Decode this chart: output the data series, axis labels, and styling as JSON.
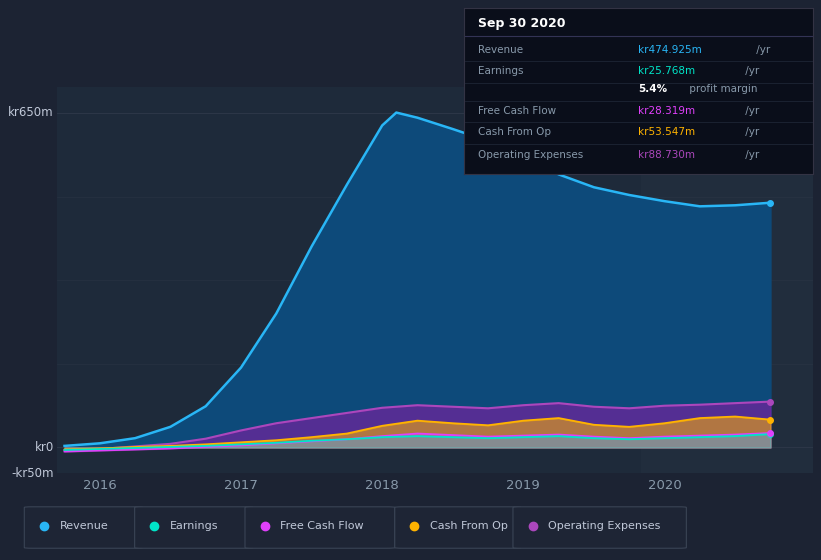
{
  "bg_color": "#1c2333",
  "plot_bg_color": "#1e2a3a",
  "grid_color": "#2d3748",
  "ylim": [
    -50,
    700
  ],
  "yticks_labeled": [
    -50,
    0,
    650
  ],
  "ytick_labels": [
    "-kr50m",
    "kr0",
    "kr650m"
  ],
  "xlim": [
    2015.7,
    2021.05
  ],
  "xticks": [
    2016,
    2017,
    2018,
    2019,
    2020
  ],
  "series": {
    "revenue": {
      "color": "#29b6f6",
      "fill_color": "#1565a0",
      "x": [
        2015.75,
        2016.0,
        2016.25,
        2016.5,
        2016.75,
        2017.0,
        2017.25,
        2017.5,
        2017.75,
        2018.0,
        2018.1,
        2018.25,
        2018.5,
        2018.75,
        2019.0,
        2019.25,
        2019.5,
        2019.75,
        2020.0,
        2020.25,
        2020.5,
        2020.75
      ],
      "y": [
        3,
        8,
        18,
        40,
        80,
        155,
        260,
        390,
        510,
        625,
        650,
        640,
        618,
        595,
        565,
        530,
        505,
        490,
        478,
        468,
        470,
        475
      ]
    },
    "earnings": {
      "color": "#00e5c8",
      "fill_color": "#00e5c8",
      "x": [
        2015.75,
        2016.0,
        2016.25,
        2016.5,
        2016.75,
        2017.0,
        2017.25,
        2017.5,
        2017.75,
        2018.0,
        2018.25,
        2018.5,
        2018.75,
        2019.0,
        2019.25,
        2019.5,
        2019.75,
        2020.0,
        2020.25,
        2020.5,
        2020.75
      ],
      "y": [
        -5,
        -3,
        -1,
        1,
        3,
        6,
        9,
        13,
        16,
        20,
        22,
        20,
        18,
        20,
        22,
        18,
        16,
        18,
        20,
        22,
        26
      ]
    },
    "free_cash_flow": {
      "color": "#e040fb",
      "fill_color": "#e040fb",
      "x": [
        2015.75,
        2016.0,
        2016.25,
        2016.5,
        2016.75,
        2017.0,
        2017.25,
        2017.5,
        2017.75,
        2018.0,
        2018.25,
        2018.5,
        2018.75,
        2019.0,
        2019.25,
        2019.5,
        2019.75,
        2020.0,
        2020.25,
        2020.5,
        2020.75
      ],
      "y": [
        -8,
        -6,
        -4,
        -2,
        1,
        4,
        8,
        12,
        16,
        22,
        27,
        24,
        21,
        23,
        25,
        21,
        18,
        21,
        23,
        25,
        28
      ]
    },
    "cash_from_op": {
      "color": "#ffb300",
      "fill_color": "#ffb300",
      "x": [
        2015.75,
        2016.0,
        2016.25,
        2016.5,
        2016.75,
        2017.0,
        2017.25,
        2017.5,
        2017.75,
        2018.0,
        2018.25,
        2018.5,
        2018.75,
        2019.0,
        2019.25,
        2019.5,
        2019.75,
        2020.0,
        2020.25,
        2020.5,
        2020.75
      ],
      "y": [
        -4,
        -2,
        1,
        3,
        6,
        10,
        14,
        20,
        27,
        42,
        52,
        47,
        43,
        52,
        57,
        44,
        40,
        47,
        57,
        60,
        54
      ]
    },
    "operating_expenses": {
      "color": "#ab47bc",
      "fill_color": "#7b1fa2",
      "x": [
        2015.75,
        2016.0,
        2016.25,
        2016.5,
        2016.75,
        2017.0,
        2017.25,
        2017.5,
        2017.75,
        2018.0,
        2018.25,
        2018.5,
        2018.75,
        2019.0,
        2019.25,
        2019.5,
        2019.75,
        2020.0,
        2020.25,
        2020.5,
        2020.75
      ],
      "y": [
        -6,
        -3,
        2,
        7,
        17,
        33,
        47,
        57,
        67,
        77,
        82,
        79,
        76,
        82,
        86,
        79,
        76,
        81,
        83,
        86,
        89
      ]
    }
  },
  "legend": [
    {
      "label": "Revenue",
      "color": "#29b6f6"
    },
    {
      "label": "Earnings",
      "color": "#00e5c8"
    },
    {
      "label": "Free Cash Flow",
      "color": "#e040fb"
    },
    {
      "label": "Cash From Op",
      "color": "#ffb300"
    },
    {
      "label": "Operating Expenses",
      "color": "#ab47bc"
    }
  ],
  "infobox": {
    "title": "Sep 30 2020",
    "rows": [
      {
        "label": "Revenue",
        "value": "kr474.925m",
        "suffix": " /yr",
        "value_color": "#29b6f6"
      },
      {
        "label": "Earnings",
        "value": "kr25.768m",
        "suffix": " /yr",
        "value_color": "#00e5c8"
      },
      {
        "label": "",
        "value": "5.4%",
        "suffix": " profit margin",
        "value_color": "#ffffff",
        "bold": true
      },
      {
        "label": "Free Cash Flow",
        "value": "kr28.319m",
        "suffix": " /yr",
        "value_color": "#e040fb"
      },
      {
        "label": "Cash From Op",
        "value": "kr53.547m",
        "suffix": " /yr",
        "value_color": "#ffb300"
      },
      {
        "label": "Operating Expenses",
        "value": "kr88.730m",
        "suffix": " /yr",
        "value_color": "#ab47bc"
      }
    ]
  }
}
